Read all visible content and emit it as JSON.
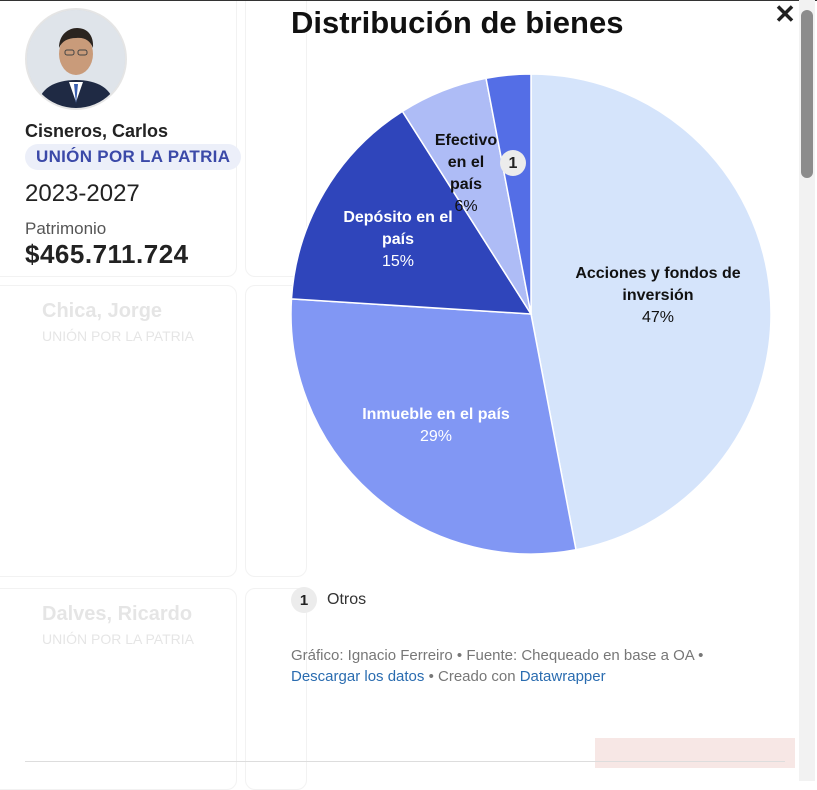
{
  "profile": {
    "name": "Cisneros, Carlos",
    "party": "UNIÓN POR LA PATRIA",
    "period": "2023-2027",
    "patrimonio_label": "Patrimonio",
    "patrimonio_value": "$465.711.724"
  },
  "background": {
    "card_names": [
      "Chica, Jorge",
      "Dalves, Ricardo"
    ],
    "card_parties": [
      "UNIÓN POR LA PATRIA",
      "UNIÓN POR LA PATRIA"
    ]
  },
  "chart_data": {
    "type": "pie",
    "title": "Distribución de bienes",
    "slices": [
      {
        "label": "Acciones y fondos de inversión",
        "value": 47,
        "display": "47%",
        "color": "#d5e4fb",
        "text_color": "#111111"
      },
      {
        "label": "Inmueble en el país",
        "value": 29,
        "display": "29%",
        "color": "#8197f4",
        "text_color": "#ffffff"
      },
      {
        "label": "Depósito en el país",
        "value": 15,
        "display": "15%",
        "color": "#2f45bb",
        "text_color": "#ffffff"
      },
      {
        "label": "Efectivo en el país",
        "value": 6,
        "display": "6%",
        "color": "#aebcf6",
        "text_color": "#111111"
      },
      {
        "label": "1",
        "value": 3,
        "display": "",
        "color": "#546ee6",
        "text_color": "#111111"
      }
    ],
    "legend": [
      {
        "key": "1",
        "label": "Otros"
      }
    ]
  },
  "footer": {
    "credit": "Gráfico: Ignacio Ferreiro • Fuente: Chequeado en base a OA •",
    "download_link": "Descargar los datos",
    "created_with": " • Creado con ",
    "tool_link": "Datawrapper"
  },
  "colors": {
    "accent": "#3b49a8",
    "link": "#2a6cb0"
  }
}
